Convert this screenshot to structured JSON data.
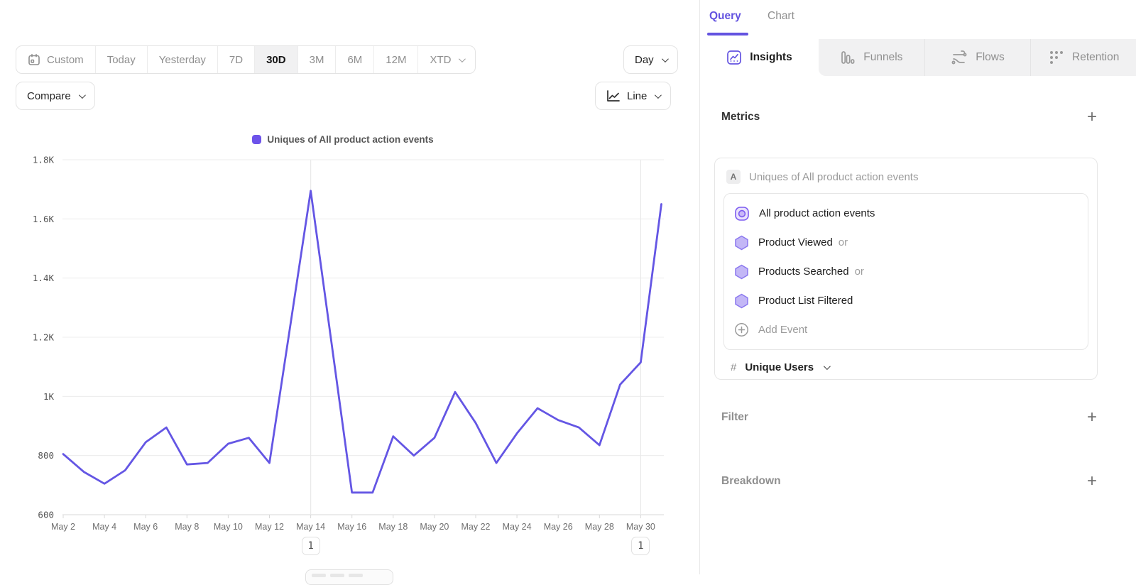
{
  "colors": {
    "accent": "#6353E0",
    "line": "#6456E4",
    "legend_swatch": "#6D53EA",
    "grid": "#ececec",
    "axis": "#d8d8d8",
    "annotation_line": "#e9e9e9",
    "hex_fill": "#c3b7f6",
    "hex_stroke": "#8a77ef"
  },
  "toolbar": {
    "date_ranges": [
      "Custom",
      "Today",
      "Yesterday",
      "7D",
      "30D",
      "3M",
      "6M",
      "12M",
      "XTD"
    ],
    "selected_range": "30D",
    "granularity": "Day",
    "compare_label": "Compare",
    "chart_type": "Line"
  },
  "chart_data": {
    "type": "line",
    "legend": "Uniques of All product action events",
    "x": [
      "May 2",
      "May 3",
      "May 4",
      "May 5",
      "May 6",
      "May 7",
      "May 8",
      "May 9",
      "May 10",
      "May 11",
      "May 12",
      "May 13",
      "May 14",
      "May 15",
      "May 16",
      "May 17",
      "May 18",
      "May 19",
      "May 20",
      "May 21",
      "May 22",
      "May 23",
      "May 24",
      "May 25",
      "May 26",
      "May 27",
      "May 28",
      "May 29",
      "May 30",
      "May 31"
    ],
    "values": [
      805,
      745,
      705,
      750,
      845,
      895,
      770,
      775,
      840,
      860,
      775,
      1235,
      1695,
      1185,
      675,
      675,
      865,
      800,
      860,
      1015,
      910,
      775,
      875,
      960,
      920,
      895,
      835,
      1040,
      1115,
      1650
    ],
    "x_tick_labels": [
      "May 2",
      "May 4",
      "May 6",
      "May 8",
      "May 10",
      "May 12",
      "May 14",
      "May 16",
      "May 18",
      "May 20",
      "May 22",
      "May 24",
      "May 26",
      "May 28",
      "May 30"
    ],
    "y_ticks": {
      "labels": [
        "600",
        "800",
        "1K",
        "1.2K",
        "1.4K",
        "1.6K",
        "1.8K"
      ],
      "values": [
        600,
        800,
        1000,
        1200,
        1400,
        1600,
        1800
      ]
    },
    "ylim": [
      600,
      1800
    ],
    "grid": true,
    "legend_position": "top-center",
    "annotations": [
      {
        "index": 12,
        "x_label": "May 14",
        "label": "1"
      },
      {
        "index": 28,
        "x_label": "May 30",
        "label": "1"
      }
    ]
  },
  "query_panel": {
    "pane_tabs": {
      "query": "Query",
      "chart": "Chart",
      "active": "Query"
    },
    "report_tabs": [
      {
        "label": "Insights",
        "active": true
      },
      {
        "label": "Funnels",
        "active": false
      },
      {
        "label": "Flows",
        "active": false
      },
      {
        "label": "Retention",
        "active": false
      }
    ],
    "metrics": {
      "title": "Metrics",
      "group_badge": "A",
      "group_title": "Uniques of All product action events",
      "events": [
        {
          "name": "All product action events",
          "suffix": ""
        },
        {
          "name": "Product Viewed",
          "suffix": "or"
        },
        {
          "name": "Products Searched",
          "suffix": "or"
        },
        {
          "name": "Product List Filtered",
          "suffix": ""
        }
      ],
      "add_event_label": "Add Event",
      "measure": "Unique Users"
    },
    "filter": {
      "title": "Filter"
    },
    "breakdown": {
      "title": "Breakdown"
    }
  }
}
